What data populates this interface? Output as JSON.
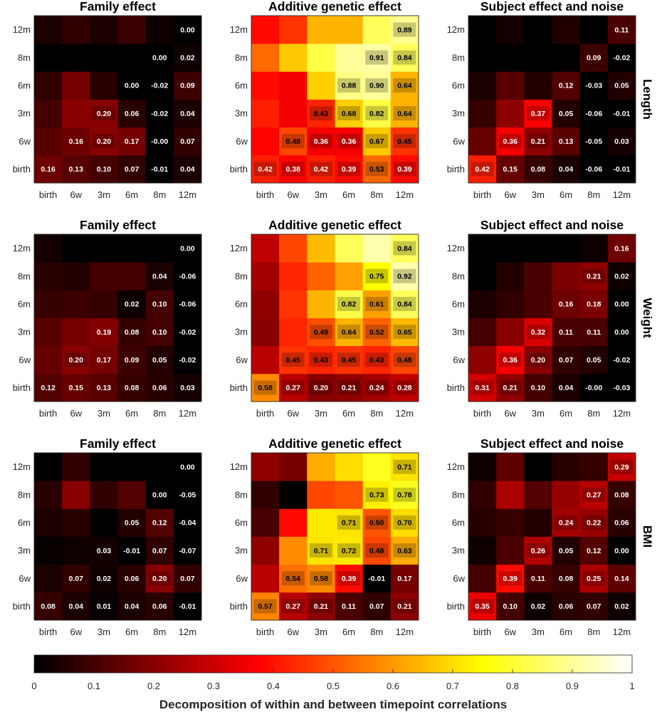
{
  "chart_data": {
    "type": "heatmap",
    "timepoints": [
      "birth",
      "6w",
      "3m",
      "6m",
      "8m",
      "12m"
    ],
    "colormap": "hot",
    "colorbar": {
      "range": [
        0,
        1
      ],
      "ticks": [
        "0",
        "0.1",
        "0.2",
        "0.3",
        "0.4",
        "0.5",
        "0.6",
        "0.7",
        "0.8",
        "0.9",
        "1"
      ],
      "label": "Decomposition of within and between timepoint correlations"
    },
    "rows": [
      {
        "label": "Length",
        "panels": [
          {
            "title": "Family effect",
            "values": [
              [
                0.16,
                0.13,
                0.1,
                0.07,
                -0.01,
                0.04
              ],
              [
                0.13,
                0.16,
                0.2,
                0.17,
                -0.0,
                0.07
              ],
              [
                0.1,
                0.2,
                0.2,
                0.06,
                -0.02,
                0.04
              ],
              [
                0.07,
                0.17,
                0.06,
                0.0,
                -0.02,
                0.09
              ],
              [
                -0.01,
                -0.0,
                -0.02,
                -0.02,
                0.0,
                0.02
              ],
              [
                0.04,
                0.07,
                0.04,
                0.09,
                0.02,
                0.0
              ]
            ],
            "labels": [
              [
                "0.16",
                "0.13",
                "0.10",
                "0.07",
                "-0.01",
                "0.04"
              ],
              [
                "",
                "0.16",
                "0.20",
                "0.17",
                "-0.00",
                "0.07"
              ],
              [
                "",
                "",
                "0.20",
                "0.06",
                "-0.02",
                "0.04"
              ],
              [
                "",
                "",
                "",
                "0.00",
                "-0.02",
                "0.09"
              ],
              [
                "",
                "",
                "",
                "",
                "0.00",
                "0.02"
              ],
              [
                "",
                "",
                "",
                "",
                "",
                "0.00"
              ]
            ]
          },
          {
            "title": "Additive genetic effect",
            "values": [
              [
                0.42,
                0.38,
                0.42,
                0.39,
                0.53,
                0.39
              ],
              [
                0.38,
                0.48,
                0.36,
                0.36,
                0.67,
                0.45
              ],
              [
                0.42,
                0.36,
                0.43,
                0.68,
                0.82,
                0.64
              ],
              [
                0.39,
                0.36,
                0.68,
                0.88,
                0.9,
                0.64
              ],
              [
                0.53,
                0.67,
                0.82,
                0.9,
                0.91,
                0.84
              ],
              [
                0.39,
                0.45,
                0.64,
                0.64,
                0.84,
                0.89
              ]
            ],
            "labels": [
              [
                "0.42",
                "0.38",
                "0.42",
                "0.39",
                "0.53",
                "0.39"
              ],
              [
                "",
                "0.48",
                "0.36",
                "0.36",
                "0.67",
                "0.45"
              ],
              [
                "",
                "",
                "0.43",
                "0.68",
                "0.82",
                "0.64"
              ],
              [
                "",
                "",
                "",
                "0.88",
                "0.90",
                "0.64"
              ],
              [
                "",
                "",
                "",
                "",
                "0.91",
                "0.84"
              ],
              [
                "",
                "",
                "",
                "",
                "",
                "0.89"
              ]
            ]
          },
          {
            "title": "Subject effect and noise",
            "values": [
              [
                0.42,
                0.15,
                0.08,
                0.04,
                -0.06,
                -0.01
              ],
              [
                0.15,
                0.36,
                0.21,
                0.13,
                -0.05,
                0.03
              ],
              [
                0.08,
                0.21,
                0.37,
                0.05,
                -0.06,
                -0.01
              ],
              [
                0.04,
                0.13,
                0.05,
                0.12,
                -0.03,
                0.05
              ],
              [
                -0.06,
                -0.05,
                -0.06,
                -0.03,
                0.09,
                -0.02
              ],
              [
                -0.01,
                0.03,
                -0.01,
                0.05,
                -0.02,
                0.11
              ]
            ],
            "labels": [
              [
                "0.42",
                "0.15",
                "0.08",
                "0.04",
                "-0.06",
                "-0.01"
              ],
              [
                "",
                "0.36",
                "0.21",
                "0.13",
                "-0.05",
                "0.03"
              ],
              [
                "",
                "",
                "0.37",
                "0.05",
                "-0.06",
                "-0.01"
              ],
              [
                "",
                "",
                "",
                "0.12",
                "-0.03",
                "0.05"
              ],
              [
                "",
                "",
                "",
                "",
                "0.09",
                "-0.02"
              ],
              [
                "",
                "",
                "",
                "",
                "",
                "0.11"
              ]
            ]
          }
        ]
      },
      {
        "label": "Weight",
        "panels": [
          {
            "title": "Family effect",
            "values": [
              [
                0.12,
                0.15,
                0.13,
                0.08,
                0.06,
                0.03
              ],
              [
                0.15,
                0.2,
                0.17,
                0.09,
                0.05,
                -0.02
              ],
              [
                0.13,
                0.17,
                0.19,
                0.08,
                0.1,
                -0.02
              ],
              [
                0.08,
                0.09,
                0.08,
                0.02,
                0.1,
                -0.06
              ],
              [
                0.06,
                0.05,
                0.1,
                0.1,
                0.04,
                -0.06
              ],
              [
                0.03,
                -0.02,
                -0.02,
                -0.06,
                -0.06,
                0.0
              ]
            ],
            "labels": [
              [
                "0.12",
                "0.15",
                "0.13",
                "0.08",
                "0.06",
                "0.03"
              ],
              [
                "",
                "0.20",
                "0.17",
                "0.09",
                "0.05",
                "-0.02"
              ],
              [
                "",
                "",
                "0.19",
                "0.08",
                "0.10",
                "-0.02"
              ],
              [
                "",
                "",
                "",
                "0.02",
                "0.10",
                "-0.06"
              ],
              [
                "",
                "",
                "",
                "",
                "0.04",
                "-0.06"
              ],
              [
                "",
                "",
                "",
                "",
                "",
                "0.00"
              ]
            ]
          },
          {
            "title": "Additive genetic effect",
            "values": [
              [
                0.58,
                0.27,
                0.2,
                0.21,
                0.24,
                0.28
              ],
              [
                0.27,
                0.45,
                0.43,
                0.45,
                0.43,
                0.48
              ],
              [
                0.2,
                0.43,
                0.49,
                0.64,
                0.52,
                0.65
              ],
              [
                0.21,
                0.45,
                0.64,
                0.82,
                0.61,
                0.84
              ],
              [
                0.24,
                0.43,
                0.52,
                0.61,
                0.75,
                0.92
              ],
              [
                0.28,
                0.48,
                0.65,
                0.84,
                0.92,
                0.84
              ]
            ],
            "labels": [
              [
                "0.58",
                "0.27",
                "0.20",
                "0.21",
                "0.24",
                "0.28"
              ],
              [
                "",
                "0.45",
                "0.43",
                "0.45",
                "0.43",
                "0.48"
              ],
              [
                "",
                "",
                "0.49",
                "0.64",
                "0.52",
                "0.65"
              ],
              [
                "",
                "",
                "",
                "0.82",
                "0.61",
                "0.84"
              ],
              [
                "",
                "",
                "",
                "",
                "0.75",
                "0.92"
              ],
              [
                "",
                "",
                "",
                "",
                "",
                "0.84"
              ]
            ]
          },
          {
            "title": "Subject effect and noise",
            "values": [
              [
                0.31,
                0.21,
                0.1,
                0.04,
                -0.0,
                -0.03
              ],
              [
                0.21,
                0.36,
                0.2,
                0.07,
                0.05,
                -0.02
              ],
              [
                0.1,
                0.2,
                0.32,
                0.11,
                0.11,
                0.0
              ],
              [
                0.04,
                0.07,
                0.11,
                0.16,
                0.18,
                0.0
              ],
              [
                -0.0,
                0.05,
                0.11,
                0.18,
                0.21,
                0.02
              ],
              [
                -0.03,
                -0.02,
                0.0,
                0.0,
                0.02,
                0.16
              ]
            ],
            "labels": [
              [
                "0.31",
                "0.21",
                "0.10",
                "0.04",
                "-0.00",
                "-0.03"
              ],
              [
                "",
                "0.36",
                "0.20",
                "0.07",
                "0.05",
                "-0.02"
              ],
              [
                "",
                "",
                "0.32",
                "0.11",
                "0.11",
                "0.00"
              ],
              [
                "",
                "",
                "",
                "0.16",
                "0.18",
                "0.00"
              ],
              [
                "",
                "",
                "",
                "",
                "0.21",
                "0.02"
              ],
              [
                "",
                "",
                "",
                "",
                "",
                "0.16"
              ]
            ]
          }
        ]
      },
      {
        "label": "BMI",
        "panels": [
          {
            "title": "Family effect",
            "values": [
              [
                0.08,
                0.04,
                0.01,
                0.04,
                0.06,
                -0.01
              ],
              [
                0.04,
                0.07,
                0.02,
                0.06,
                0.2,
                0.07
              ],
              [
                0.01,
                0.02,
                0.03,
                -0.01,
                0.07,
                -0.07
              ],
              [
                0.04,
                0.06,
                -0.01,
                0.05,
                0.12,
                -0.04
              ],
              [
                0.06,
                0.2,
                0.07,
                0.12,
                0.0,
                -0.05
              ],
              [
                -0.01,
                0.07,
                -0.07,
                -0.04,
                -0.05,
                0.0
              ]
            ],
            "labels": [
              [
                "0.08",
                "0.04",
                "0.01",
                "0.04",
                "0.06",
                "-0.01"
              ],
              [
                "",
                "0.07",
                "0.02",
                "0.06",
                "0.20",
                "0.07"
              ],
              [
                "",
                "",
                "0.03",
                "-0.01",
                "0.07",
                "-0.07"
              ],
              [
                "",
                "",
                "",
                "0.05",
                "0.12",
                "-0.04"
              ],
              [
                "",
                "",
                "",
                "",
                "0.00",
                "-0.05"
              ],
              [
                "",
                "",
                "",
                "",
                "",
                "0.00"
              ]
            ]
          },
          {
            "title": "Additive genetic effect",
            "values": [
              [
                0.57,
                0.27,
                0.21,
                0.11,
                0.07,
                0.21
              ],
              [
                0.27,
                0.54,
                0.58,
                0.39,
                -0.01,
                0.17
              ],
              [
                0.21,
                0.58,
                0.71,
                0.72,
                0.48,
                0.63
              ],
              [
                0.11,
                0.39,
                0.72,
                0.71,
                0.5,
                0.7
              ],
              [
                0.07,
                -0.01,
                0.48,
                0.5,
                0.73,
                0.78
              ],
              [
                0.21,
                0.17,
                0.63,
                0.7,
                0.78,
                0.71
              ]
            ],
            "labels": [
              [
                "0.57",
                "0.27",
                "0.21",
                "0.11",
                "0.07",
                "0.21"
              ],
              [
                "",
                "0.54",
                "0.58",
                "0.39",
                "-0.01",
                "0.17"
              ],
              [
                "",
                "",
                "0.71",
                "0.72",
                "0.48",
                "0.63"
              ],
              [
                "",
                "",
                "",
                "0.71",
                "0.50",
                "0.70"
              ],
              [
                "",
                "",
                "",
                "",
                "0.73",
                "0.78"
              ],
              [
                "",
                "",
                "",
                "",
                "",
                "0.71"
              ]
            ]
          },
          {
            "title": "Subject effect and noise",
            "values": [
              [
                0.35,
                0.1,
                0.02,
                0.06,
                0.07,
                0.02
              ],
              [
                0.1,
                0.39,
                0.11,
                0.08,
                0.25,
                0.14
              ],
              [
                0.02,
                0.11,
                0.26,
                0.05,
                0.12,
                0.0
              ],
              [
                0.06,
                0.08,
                0.05,
                0.24,
                0.22,
                0.06
              ],
              [
                0.07,
                0.25,
                0.12,
                0.22,
                0.27,
                0.08
              ],
              [
                0.02,
                0.14,
                0.0,
                0.06,
                0.08,
                0.29
              ]
            ],
            "labels": [
              [
                "0.35",
                "0.10",
                "0.02",
                "0.06",
                "0.07",
                "0.02"
              ],
              [
                "",
                "0.39",
                "0.11",
                "0.08",
                "0.25",
                "0.14"
              ],
              [
                "",
                "",
                "0.26",
                "0.05",
                "0.12",
                "0.00"
              ],
              [
                "",
                "",
                "",
                "0.24",
                "0.22",
                "0.06"
              ],
              [
                "",
                "",
                "",
                "",
                "0.27",
                "0.08"
              ],
              [
                "",
                "",
                "",
                "",
                "",
                "0.29"
              ]
            ]
          }
        ]
      }
    ]
  }
}
